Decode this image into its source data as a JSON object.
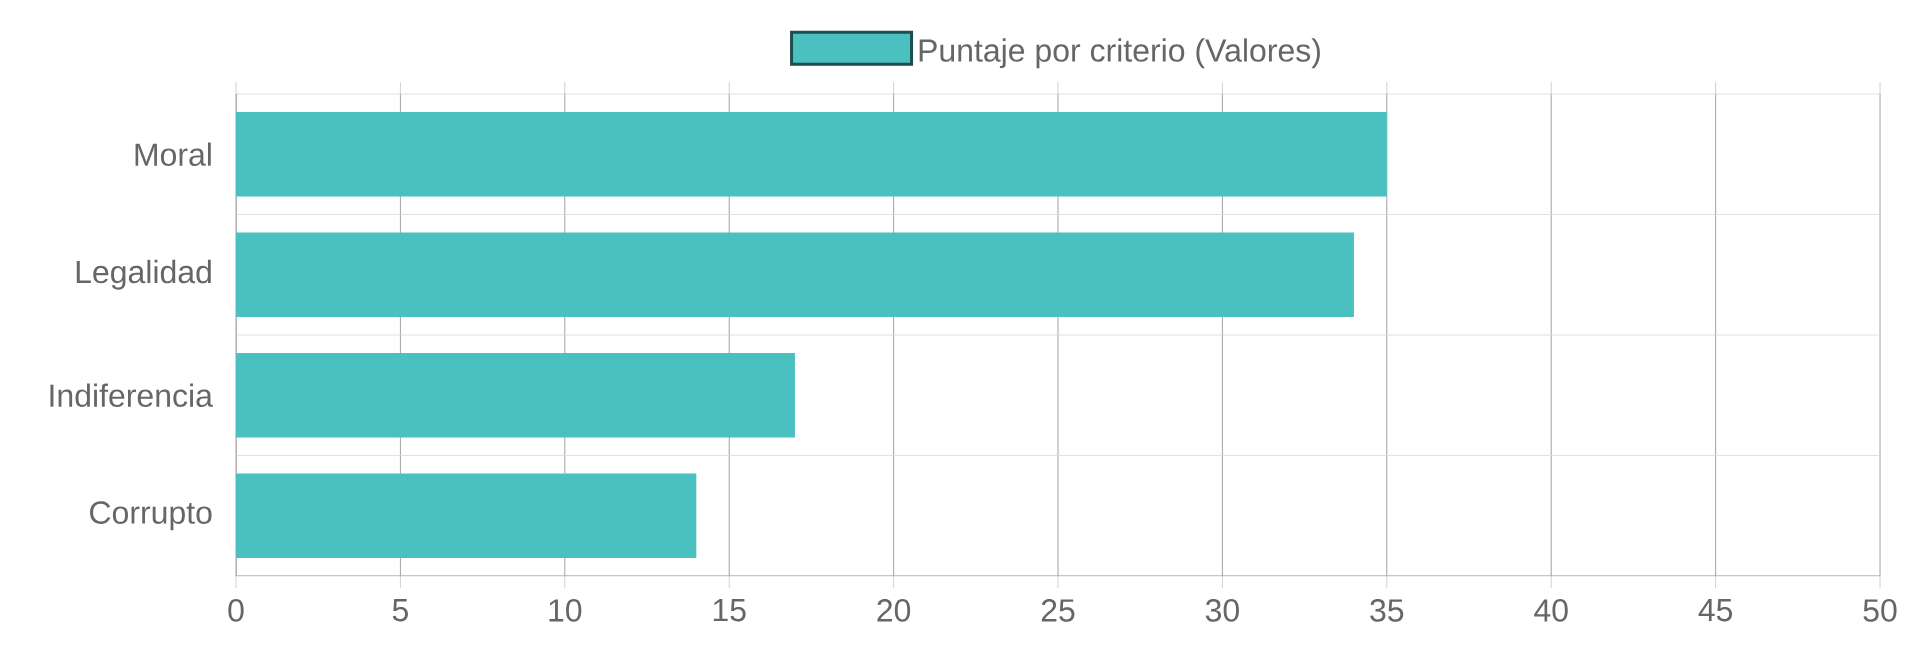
{
  "chart_data": {
    "type": "bar",
    "orientation": "horizontal",
    "categories": [
      "Moral",
      "Legalidad",
      "Indiferencia",
      "Corrupto"
    ],
    "series": [
      {
        "name": "Puntaje por criterio (Valores)",
        "color": "#4bc0c0",
        "values": [
          35,
          34,
          17,
          14
        ]
      }
    ],
    "xlim": [
      0,
      50
    ],
    "xticks": [
      0,
      5,
      10,
      15,
      20,
      25,
      30,
      35,
      40,
      45,
      50
    ],
    "grid": true,
    "legend": "top"
  }
}
